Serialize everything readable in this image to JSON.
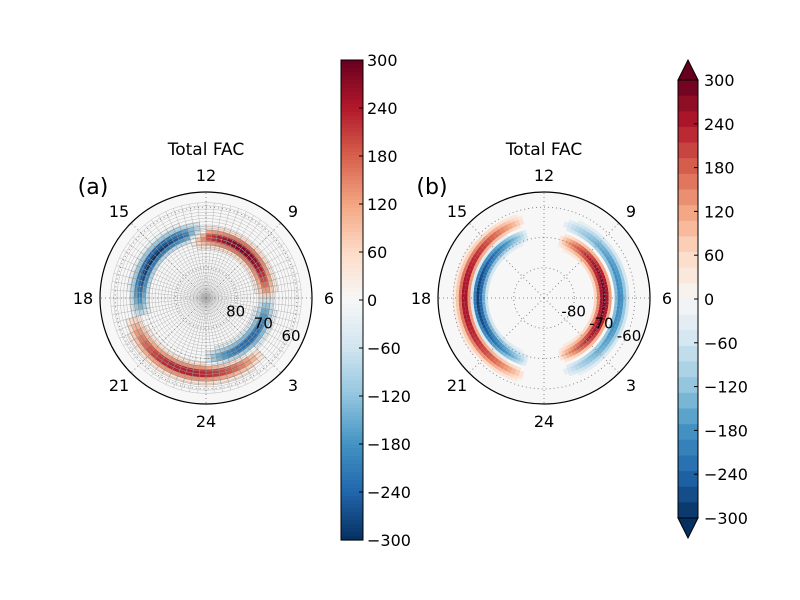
{
  "chart_data": [
    {
      "type": "heatmap",
      "panel_label": "(a)",
      "title": "Total FAC",
      "mlt_labels": [
        "12",
        "15",
        "18",
        "21",
        "24",
        "3",
        "6",
        "9"
      ],
      "lat_labels": [
        "80",
        "70",
        "60"
      ],
      "lat_range": [
        55,
        90
      ],
      "grid": "dense mlat/mlt bins",
      "colorbar": {
        "ticks": [
          "300",
          "240",
          "180",
          "120",
          "60",
          "0",
          "−60",
          "−120",
          "−180",
          "−240",
          "−300"
        ],
        "range": [
          -300,
          300
        ],
        "extend": "neither"
      },
      "pattern": [
        {
          "mlt_start": 6,
          "mlt_end": 13,
          "lat_center": 70,
          "value": 300
        },
        {
          "mlt_start": 12,
          "mlt_end": 19,
          "lat_center": 68,
          "value": -300
        },
        {
          "mlt_start": 19,
          "mlt_end": 27,
          "lat_center": 65,
          "value": 250
        },
        {
          "mlt_start": 24,
          "mlt_end": 30,
          "lat_center": 70,
          "value": -250
        }
      ]
    },
    {
      "type": "heatmap",
      "panel_label": "(b)",
      "title": "Total FAC",
      "mlt_labels": [
        "12",
        "15",
        "18",
        "21",
        "24",
        "3",
        "6",
        "9"
      ],
      "lat_labels": [
        "-80",
        "-70",
        "-60"
      ],
      "lat_range": [
        -90,
        -55
      ],
      "grid": "dotted",
      "colorbar": {
        "ticks": [
          "300",
          "240",
          "180",
          "120",
          "60",
          "0",
          "−60",
          "−120",
          "−180",
          "−240",
          "−300"
        ],
        "range": [
          -300,
          300
        ],
        "extend": "both"
      },
      "pattern": [
        {
          "mlt_start": 1,
          "mlt_end": 11,
          "lat_center": -70,
          "value": 300
        },
        {
          "mlt_start": 13,
          "mlt_end": 23,
          "lat_center": -68,
          "value": -300
        },
        {
          "mlt_start": 13,
          "mlt_end": 23,
          "lat_center": -64,
          "value": 280
        },
        {
          "mlt_start": 1,
          "mlt_end": 11,
          "lat_center": -65,
          "value": -200
        }
      ]
    }
  ],
  "colors": {
    "cmap_stops": [
      "#053061",
      "#2166ac",
      "#4393c3",
      "#92c5de",
      "#d1e5f0",
      "#f7f7f7",
      "#fddbc7",
      "#f4a582",
      "#d6604d",
      "#b2182b",
      "#67001f"
    ],
    "grid_line": "#999999",
    "frame": "#000000"
  }
}
